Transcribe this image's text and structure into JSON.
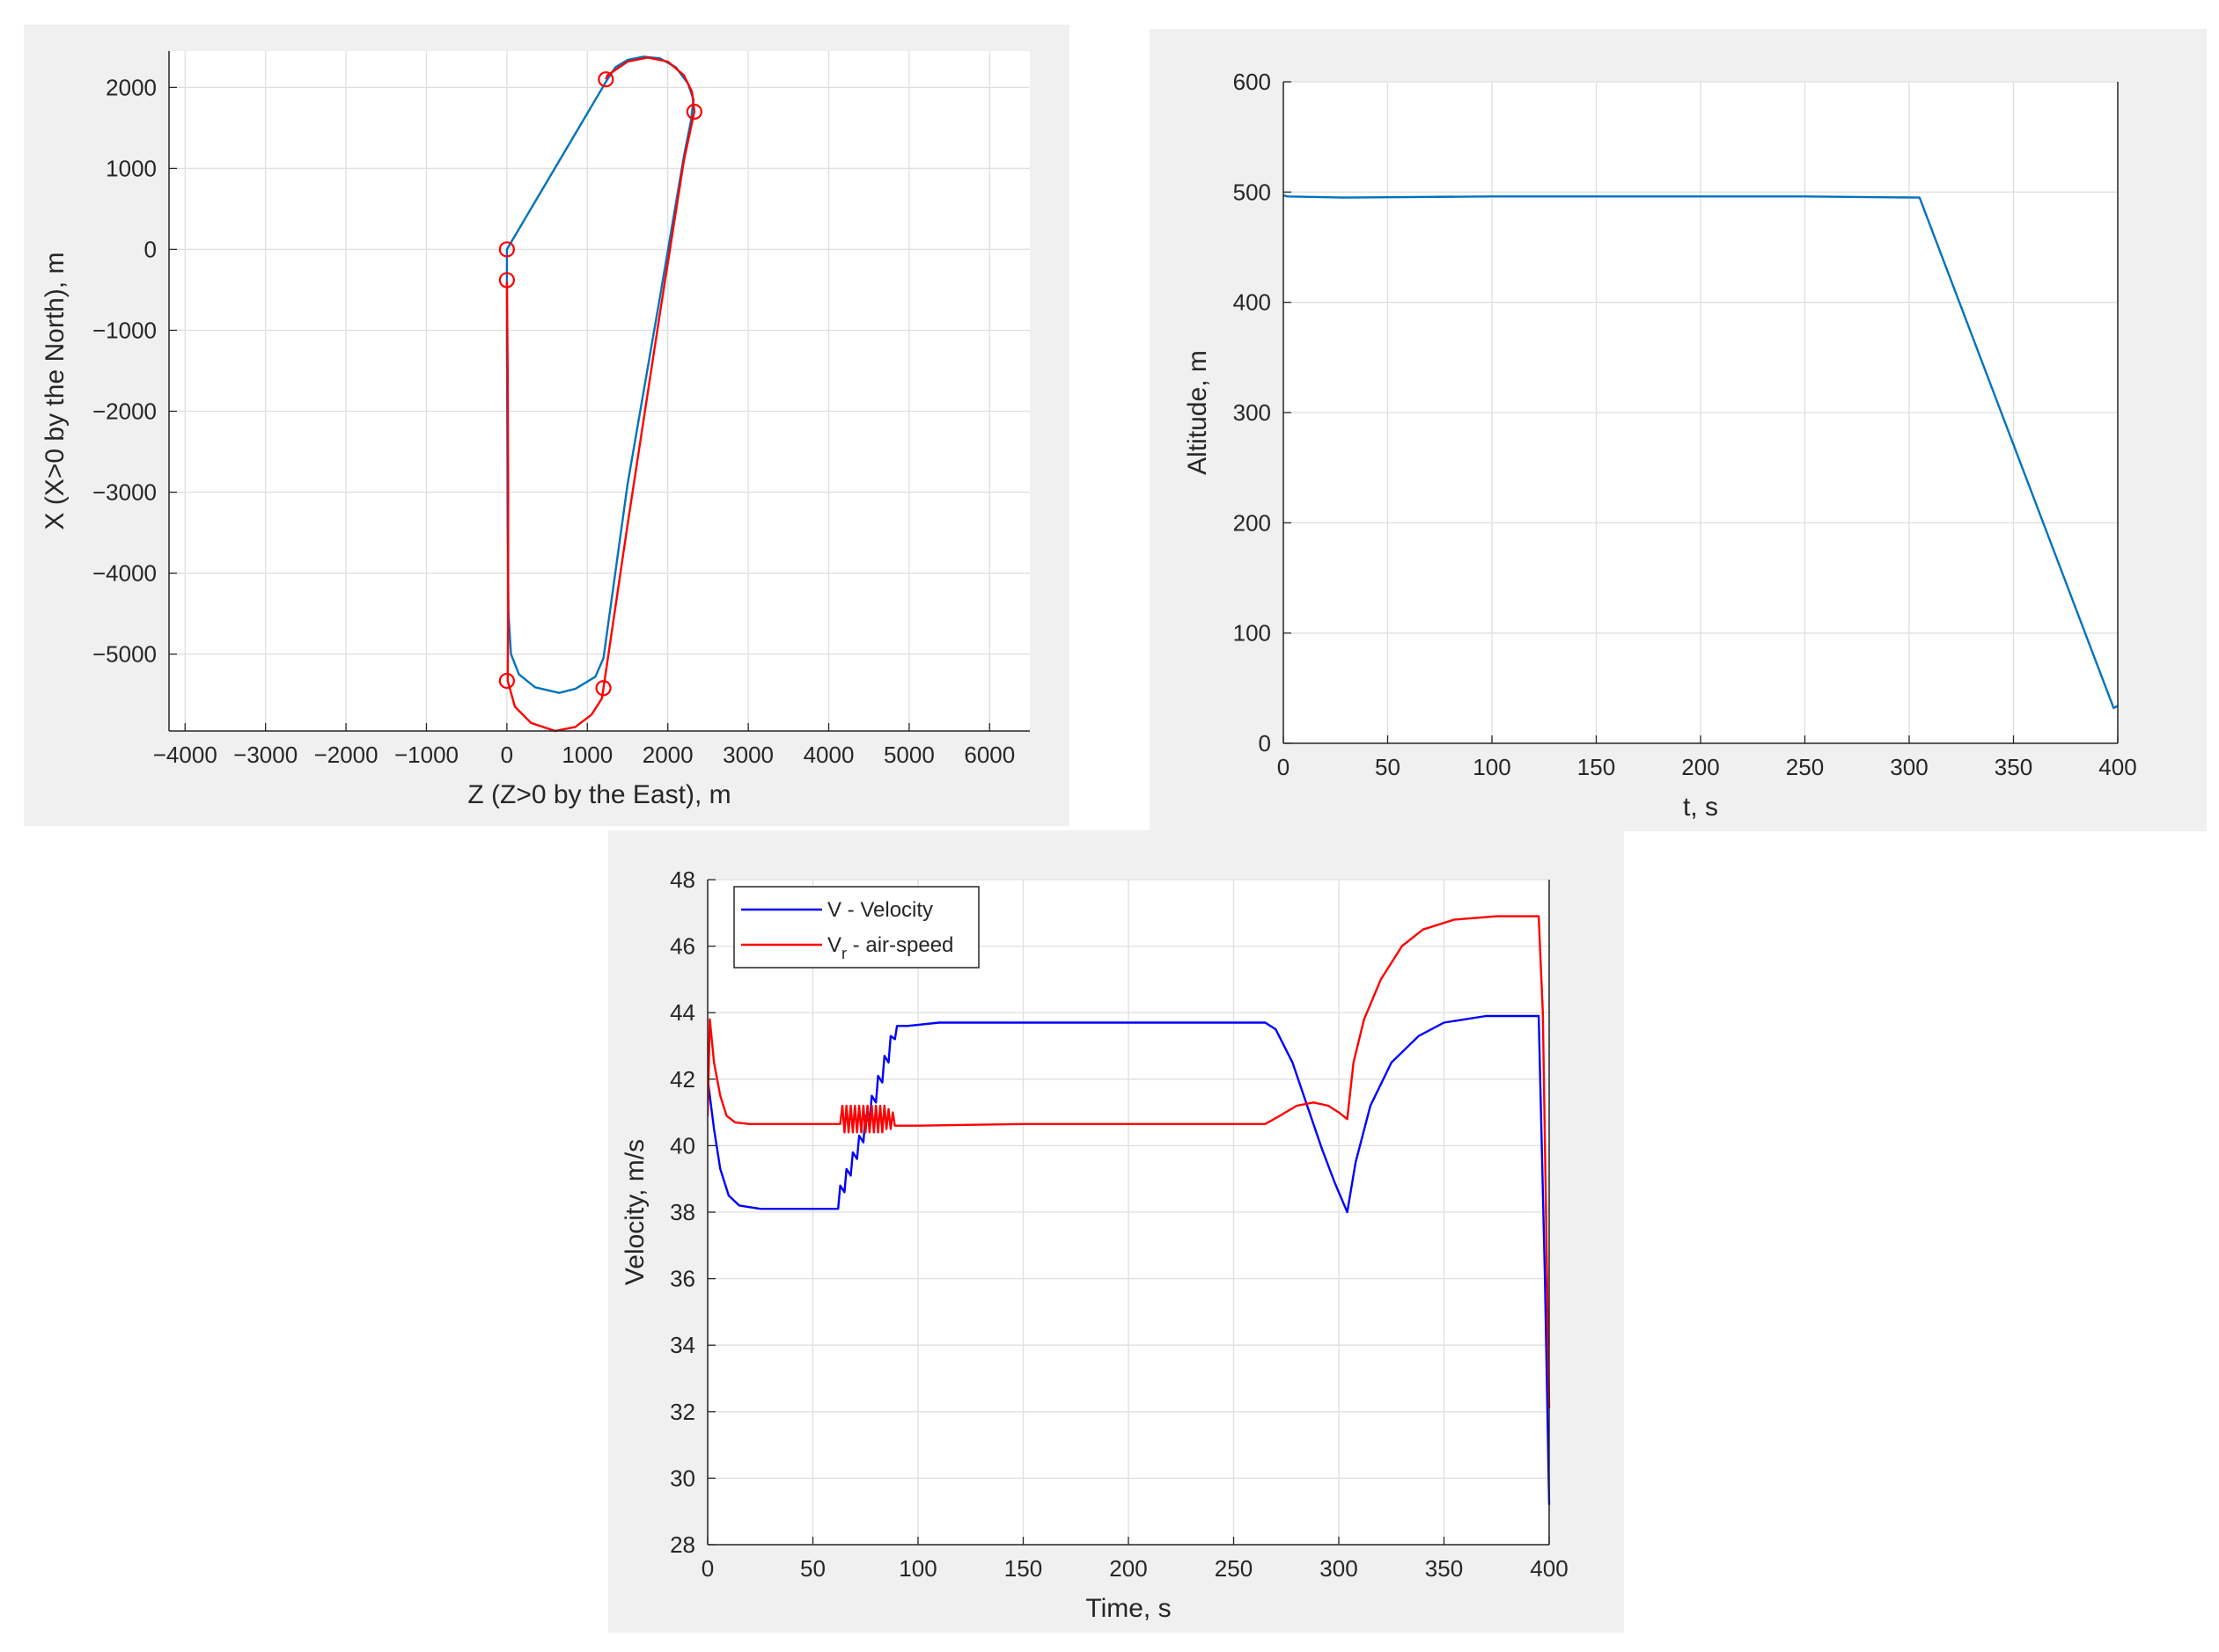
{
  "chart_data": [
    {
      "type": "line",
      "title": "",
      "xlabel": "Z (Z>0 by the East), m",
      "ylabel": "X (X>0 by the North), m",
      "xlim": [
        -4200,
        6500
      ],
      "ylim": [
        -5950,
        2450
      ],
      "xticks": [
        -4000,
        -3000,
        -2000,
        -1000,
        0,
        1000,
        2000,
        3000,
        4000,
        5000,
        6000
      ],
      "yticks": [
        -5000,
        -4000,
        -3000,
        -2000,
        -1000,
        0,
        1000,
        2000
      ],
      "grid": true,
      "series": [
        {
          "color": "#0072bd",
          "points": [
            [
              0,
              -1200
            ],
            [
              0,
              -400
            ],
            [
              0,
              0
            ],
            [
              1250,
              2100
            ],
            [
              1350,
              2250
            ],
            [
              1500,
              2340
            ],
            [
              1700,
              2380
            ],
            [
              1900,
              2360
            ],
            [
              2100,
              2250
            ],
            [
              2250,
              2050
            ],
            [
              2320,
              1850
            ],
            [
              2290,
              1600
            ],
            [
              2200,
              1150
            ],
            [
              1900,
              -600
            ],
            [
              1500,
              -2900
            ],
            [
              1200,
              -5050
            ],
            [
              1100,
              -5280
            ],
            [
              850,
              -5430
            ],
            [
              650,
              -5480
            ],
            [
              350,
              -5410
            ],
            [
              150,
              -5250
            ],
            [
              50,
              -5000
            ],
            [
              20,
              -4500
            ],
            [
              10,
              -3500
            ],
            [
              5,
              -2000
            ],
            [
              0,
              -1200
            ]
          ]
        },
        {
          "color": "#ff0000",
          "points": [
            [
              0,
              -400
            ],
            [
              10,
              -1500
            ],
            [
              15,
              -3000
            ],
            [
              15,
              -4500
            ],
            [
              10,
              -5330
            ],
            [
              100,
              -5650
            ],
            [
              300,
              -5850
            ],
            [
              600,
              -5950
            ],
            [
              850,
              -5900
            ],
            [
              1050,
              -5750
            ],
            [
              1180,
              -5550
            ],
            [
              1200,
              -5420
            ],
            [
              1500,
              -3400
            ],
            [
              1900,
              -800
            ],
            [
              2200,
              1100
            ],
            [
              2330,
              1700
            ],
            [
              2300,
              1950
            ],
            [
              2200,
              2150
            ],
            [
              2000,
              2320
            ],
            [
              1750,
              2370
            ],
            [
              1500,
              2320
            ],
            [
              1250,
              2150
            ],
            [
              1230,
              2100
            ]
          ]
        }
      ],
      "markers": {
        "color": "#ff0000",
        "points": [
          [
            0,
            0
          ],
          [
            0,
            -380
          ],
          [
            1230,
            2100
          ],
          [
            2330,
            1700
          ],
          [
            0,
            -5330
          ],
          [
            1200,
            -5420
          ]
        ]
      }
    },
    {
      "type": "line",
      "title": "",
      "xlabel": "t, s",
      "ylabel": "Altitude, m",
      "xlim": [
        0,
        400
      ],
      "ylim": [
        0,
        600
      ],
      "xticks": [
        0,
        50,
        100,
        150,
        200,
        250,
        300,
        350,
        400
      ],
      "yticks": [
        0,
        100,
        200,
        300,
        400,
        500,
        600
      ],
      "grid": true,
      "series": [
        {
          "color": "#0072bd",
          "points": [
            [
              0,
              497
            ],
            [
              2,
              496
            ],
            [
              30,
              495
            ],
            [
              100,
              496
            ],
            [
              200,
              496
            ],
            [
              250,
              496
            ],
            [
              305,
              495
            ],
            [
              398,
              32
            ],
            [
              400,
              34
            ]
          ]
        }
      ]
    },
    {
      "type": "line",
      "title": "",
      "xlabel": "Time, s",
      "ylabel": "Velocity, m/s",
      "xlim": [
        0,
        400
      ],
      "ylim": [
        28,
        48
      ],
      "xticks": [
        0,
        50,
        100,
        150,
        200,
        250,
        300,
        350,
        400
      ],
      "yticks": [
        28,
        30,
        32,
        34,
        36,
        38,
        40,
        42,
        44,
        46,
        48
      ],
      "grid": true,
      "legend": {
        "position": "top-left",
        "entries": [
          {
            "label": "V - Velocity",
            "color": "#0000ff"
          },
          {
            "label": "V",
            "sub": "r",
            "suffix": " - air-speed",
            "color": "#ff0000"
          }
        ]
      },
      "series": [
        {
          "name": "V - Velocity",
          "color": "#0000ff",
          "points": [
            [
              0,
              42
            ],
            [
              3,
              40.5
            ],
            [
              6,
              39.3
            ],
            [
              10,
              38.5
            ],
            [
              15,
              38.2
            ],
            [
              25,
              38.1
            ],
            [
              50,
              38.1
            ],
            [
              62,
              38.1
            ],
            [
              63,
              38.8
            ],
            [
              65,
              38.6
            ],
            [
              66,
              39.3
            ],
            [
              68,
              39.1
            ],
            [
              69,
              39.8
            ],
            [
              71,
              39.6
            ],
            [
              72,
              40.3
            ],
            [
              74,
              40.1
            ],
            [
              75,
              40.9
            ],
            [
              77,
              40.7
            ],
            [
              78,
              41.5
            ],
            [
              80,
              41.3
            ],
            [
              81,
              42.1
            ],
            [
              83,
              41.9
            ],
            [
              84,
              42.7
            ],
            [
              86,
              42.5
            ],
            [
              87,
              43.3
            ],
            [
              89,
              43.2
            ],
            [
              90,
              43.6
            ],
            [
              95,
              43.6
            ],
            [
              110,
              43.7
            ],
            [
              150,
              43.7
            ],
            [
              200,
              43.7
            ],
            [
              265,
              43.7
            ],
            [
              270,
              43.5
            ],
            [
              278,
              42.5
            ],
            [
              285,
              41.2
            ],
            [
              292,
              39.9
            ],
            [
              298,
              38.9
            ],
            [
              304,
              38
            ],
            [
              308,
              39.5
            ],
            [
              315,
              41.2
            ],
            [
              325,
              42.5
            ],
            [
              338,
              43.3
            ],
            [
              350,
              43.7
            ],
            [
              370,
              43.9
            ],
            [
              395,
              43.9
            ],
            [
              398,
              36
            ],
            [
              400,
              29.2
            ]
          ]
        },
        {
          "name": "V - air-speed",
          "color": "#ff0000",
          "points": [
            [
              0,
              40.9
            ],
            [
              1,
              43.8
            ],
            [
              3,
              42.5
            ],
            [
              6,
              41.5
            ],
            [
              9,
              40.9
            ],
            [
              13,
              40.7
            ],
            [
              20,
              40.65
            ],
            [
              50,
              40.65
            ],
            [
              63,
              40.65
            ],
            [
              64,
              41.2
            ],
            [
              65,
              40.4
            ],
            [
              66,
              41.2
            ],
            [
              67,
              40.4
            ],
            [
              68,
              41.2
            ],
            [
              69,
              40.4
            ],
            [
              70,
              41.2
            ],
            [
              71,
              40.4
            ],
            [
              72,
              41.2
            ],
            [
              73,
              40.4
            ],
            [
              74,
              41.2
            ],
            [
              75,
              40.4
            ],
            [
              76,
              41.2
            ],
            [
              77,
              40.4
            ],
            [
              78,
              41.2
            ],
            [
              79,
              40.4
            ],
            [
              80,
              41.2
            ],
            [
              81,
              40.4
            ],
            [
              82,
              41.2
            ],
            [
              83,
              40.4
            ],
            [
              84,
              41.2
            ],
            [
              85,
              40.5
            ],
            [
              86,
              41.1
            ],
            [
              87,
              40.5
            ],
            [
              88,
              41
            ],
            [
              89,
              40.6
            ],
            [
              95,
              40.6
            ],
            [
              100,
              40.6
            ],
            [
              150,
              40.65
            ],
            [
              200,
              40.65
            ],
            [
              265,
              40.65
            ],
            [
              272,
              40.9
            ],
            [
              280,
              41.2
            ],
            [
              288,
              41.3
            ],
            [
              295,
              41.2
            ],
            [
              300,
              41
            ],
            [
              304,
              40.8
            ],
            [
              307,
              42.5
            ],
            [
              312,
              43.8
            ],
            [
              320,
              45
            ],
            [
              330,
              46
            ],
            [
              340,
              46.5
            ],
            [
              355,
              46.8
            ],
            [
              375,
              46.9
            ],
            [
              395,
              46.9
            ],
            [
              397,
              44
            ],
            [
              400,
              32.1
            ]
          ]
        }
      ]
    }
  ]
}
